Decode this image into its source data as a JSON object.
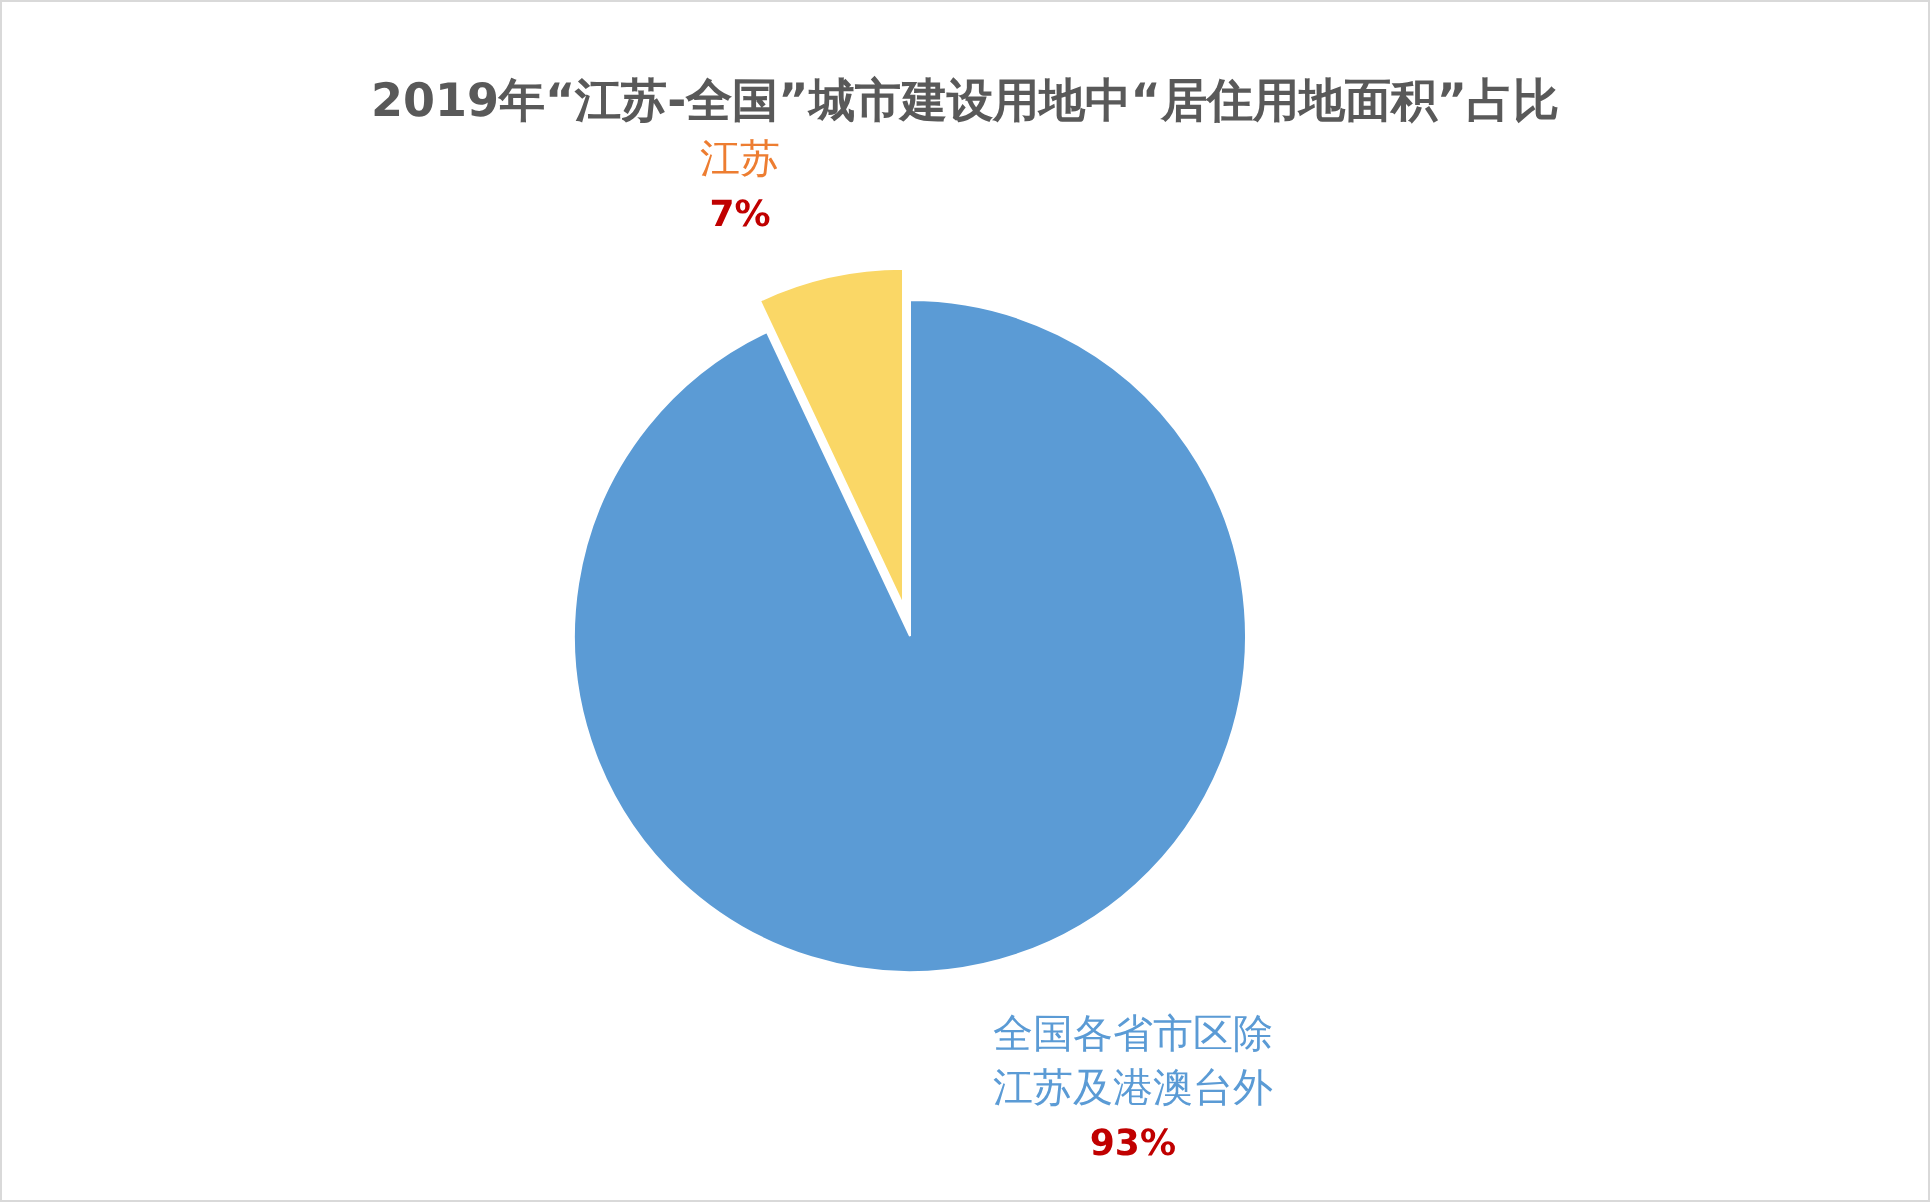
{
  "chart_data": {
    "type": "pie",
    "title": "2019年“江苏-全国”城市建设用地中“居住用地面积”占比",
    "categories": [
      "全国各省市区除江苏及港澳台外",
      "江苏"
    ],
    "values": [
      93,
      7
    ],
    "colors": [
      "#5b9bd5",
      "#fad766"
    ],
    "value_labels": [
      "93%",
      "7%"
    ]
  }
}
